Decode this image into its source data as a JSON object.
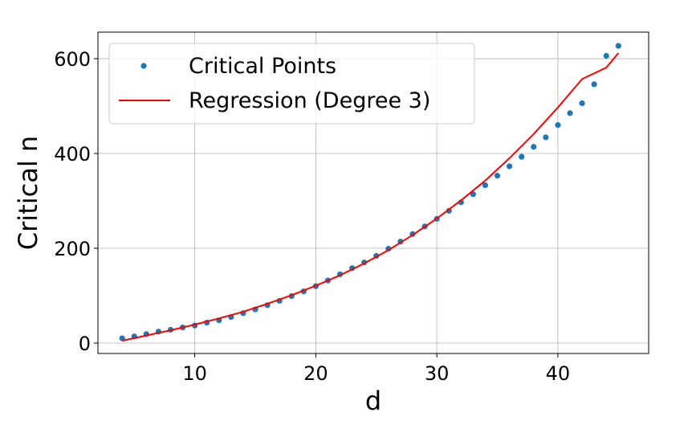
{
  "chart_data": {
    "type": "scatter",
    "xlabel": "d",
    "ylabel": "Critical n",
    "xlim": [
      2.0,
      47.5
    ],
    "ylim": [
      -22,
      656
    ],
    "xticks": [
      10,
      20,
      30,
      40
    ],
    "yticks": [
      0,
      200,
      400,
      600
    ],
    "grid": true,
    "legend_position": "upper-left",
    "series": [
      {
        "name": "Critical Points",
        "kind": "scatter",
        "color": "#1f77b4",
        "x": [
          4,
          5,
          6,
          7,
          8,
          9,
          10,
          11,
          12,
          13,
          14,
          15,
          16,
          17,
          18,
          19,
          20,
          21,
          22,
          23,
          24,
          25,
          26,
          27,
          28,
          29,
          30,
          31,
          32,
          33,
          34,
          35,
          36,
          37,
          38,
          39,
          40,
          41,
          42,
          43,
          44,
          45
        ],
        "y": [
          10,
          14,
          19,
          24,
          28,
          33,
          37,
          43,
          48,
          55,
          63,
          71,
          80,
          89,
          99,
          109,
          120,
          132,
          145,
          158,
          170,
          184,
          199,
          214,
          230,
          246,
          262,
          279,
          297,
          314,
          333,
          353,
          373,
          393,
          414,
          434,
          460,
          485,
          506,
          546,
          606,
          627
        ]
      },
      {
        "name": "Regression (Degree 3)",
        "kind": "line",
        "color": "#ff0000",
        "x": [
          4,
          6,
          8,
          10,
          12,
          14,
          16,
          18,
          20,
          22,
          24,
          26,
          28,
          30,
          32,
          34,
          36,
          38,
          40,
          42,
          44,
          45
        ],
        "y": [
          5,
          16,
          27,
          39,
          52,
          66,
          83,
          101,
          121,
          143,
          168,
          196,
          228,
          263,
          301,
          343,
          390,
          441,
          497,
          557,
          581,
          612
        ]
      }
    ]
  }
}
